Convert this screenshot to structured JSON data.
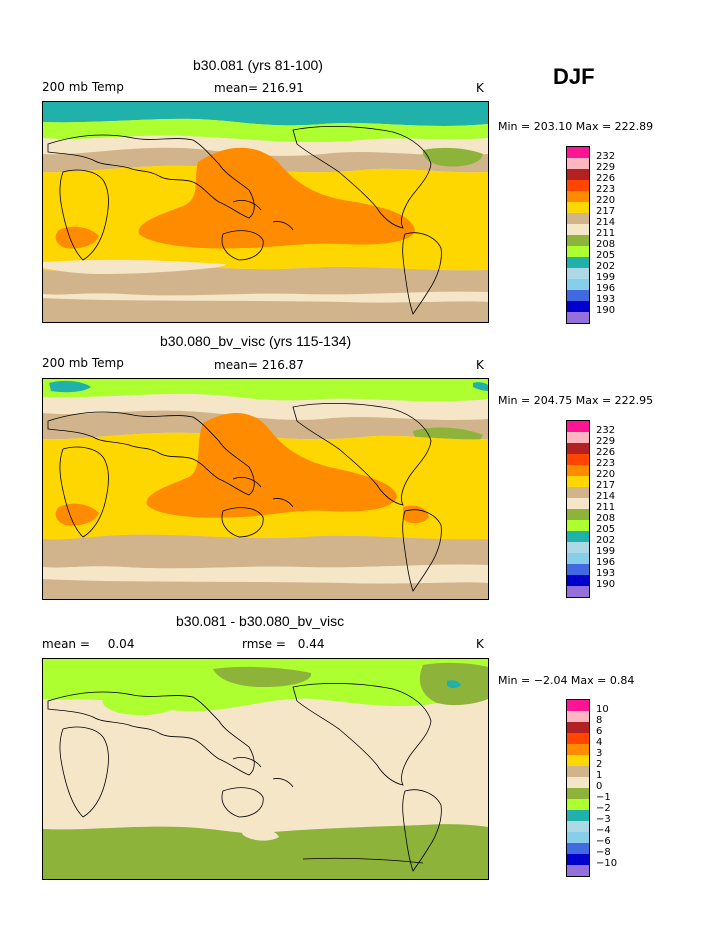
{
  "season": "DJF",
  "legend_colors": [
    "#ff1493",
    "#ffb6c1",
    "#b22222",
    "#ff4500",
    "#ff8c00",
    "#ffd700",
    "#ffff00",
    "#d2b48c",
    "#f5e6c8",
    "#8db33a",
    "#adff2f",
    "#20b2aa",
    "#add8e6",
    "#87ceeb",
    "#4169e1",
    "#0000cd",
    "#9370db"
  ],
  "coast_color": "#000000",
  "panels": [
    {
      "title": "b30.081 (yrs 81-100)",
      "variable": "200 mb Temp",
      "stat_label": "mean=",
      "stat_value": "216.91",
      "stat2_label": "",
      "stat2_value": "",
      "units": "K",
      "min_max": "Min = 203.10 Max = 222.89",
      "legend_labels": [
        "232",
        "229",
        "226",
        "223",
        "220",
        "217",
        "214",
        "211",
        "208",
        "205",
        "202",
        "199",
        "196",
        "193",
        "190"
      ]
    },
    {
      "title": "b30.080_bv_visc (yrs 115-134)",
      "variable": "200 mb Temp",
      "stat_label": "mean=",
      "stat_value": "216.87",
      "stat2_label": "",
      "stat2_value": "",
      "units": "K",
      "min_max": "Min = 204.75 Max = 222.95",
      "legend_labels": [
        "232",
        "229",
        "226",
        "223",
        "220",
        "217",
        "214",
        "211",
        "208",
        "205",
        "202",
        "199",
        "196",
        "193",
        "190"
      ]
    },
    {
      "title": "b30.081 - b30.080_bv_visc",
      "variable": "mean =",
      "stat_label": "",
      "stat_value": "0.04",
      "stat2_label": "rmse =",
      "stat2_value": "0.44",
      "units": "K",
      "min_max": "Min =  −2.04 Max =    0.84",
      "legend_labels": [
        "10",
        "8",
        "6",
        "4",
        "3",
        "2",
        "1",
        "0",
        "−1",
        "−2",
        "−3",
        "−4",
        "−6",
        "−8",
        "−10"
      ]
    }
  ]
}
